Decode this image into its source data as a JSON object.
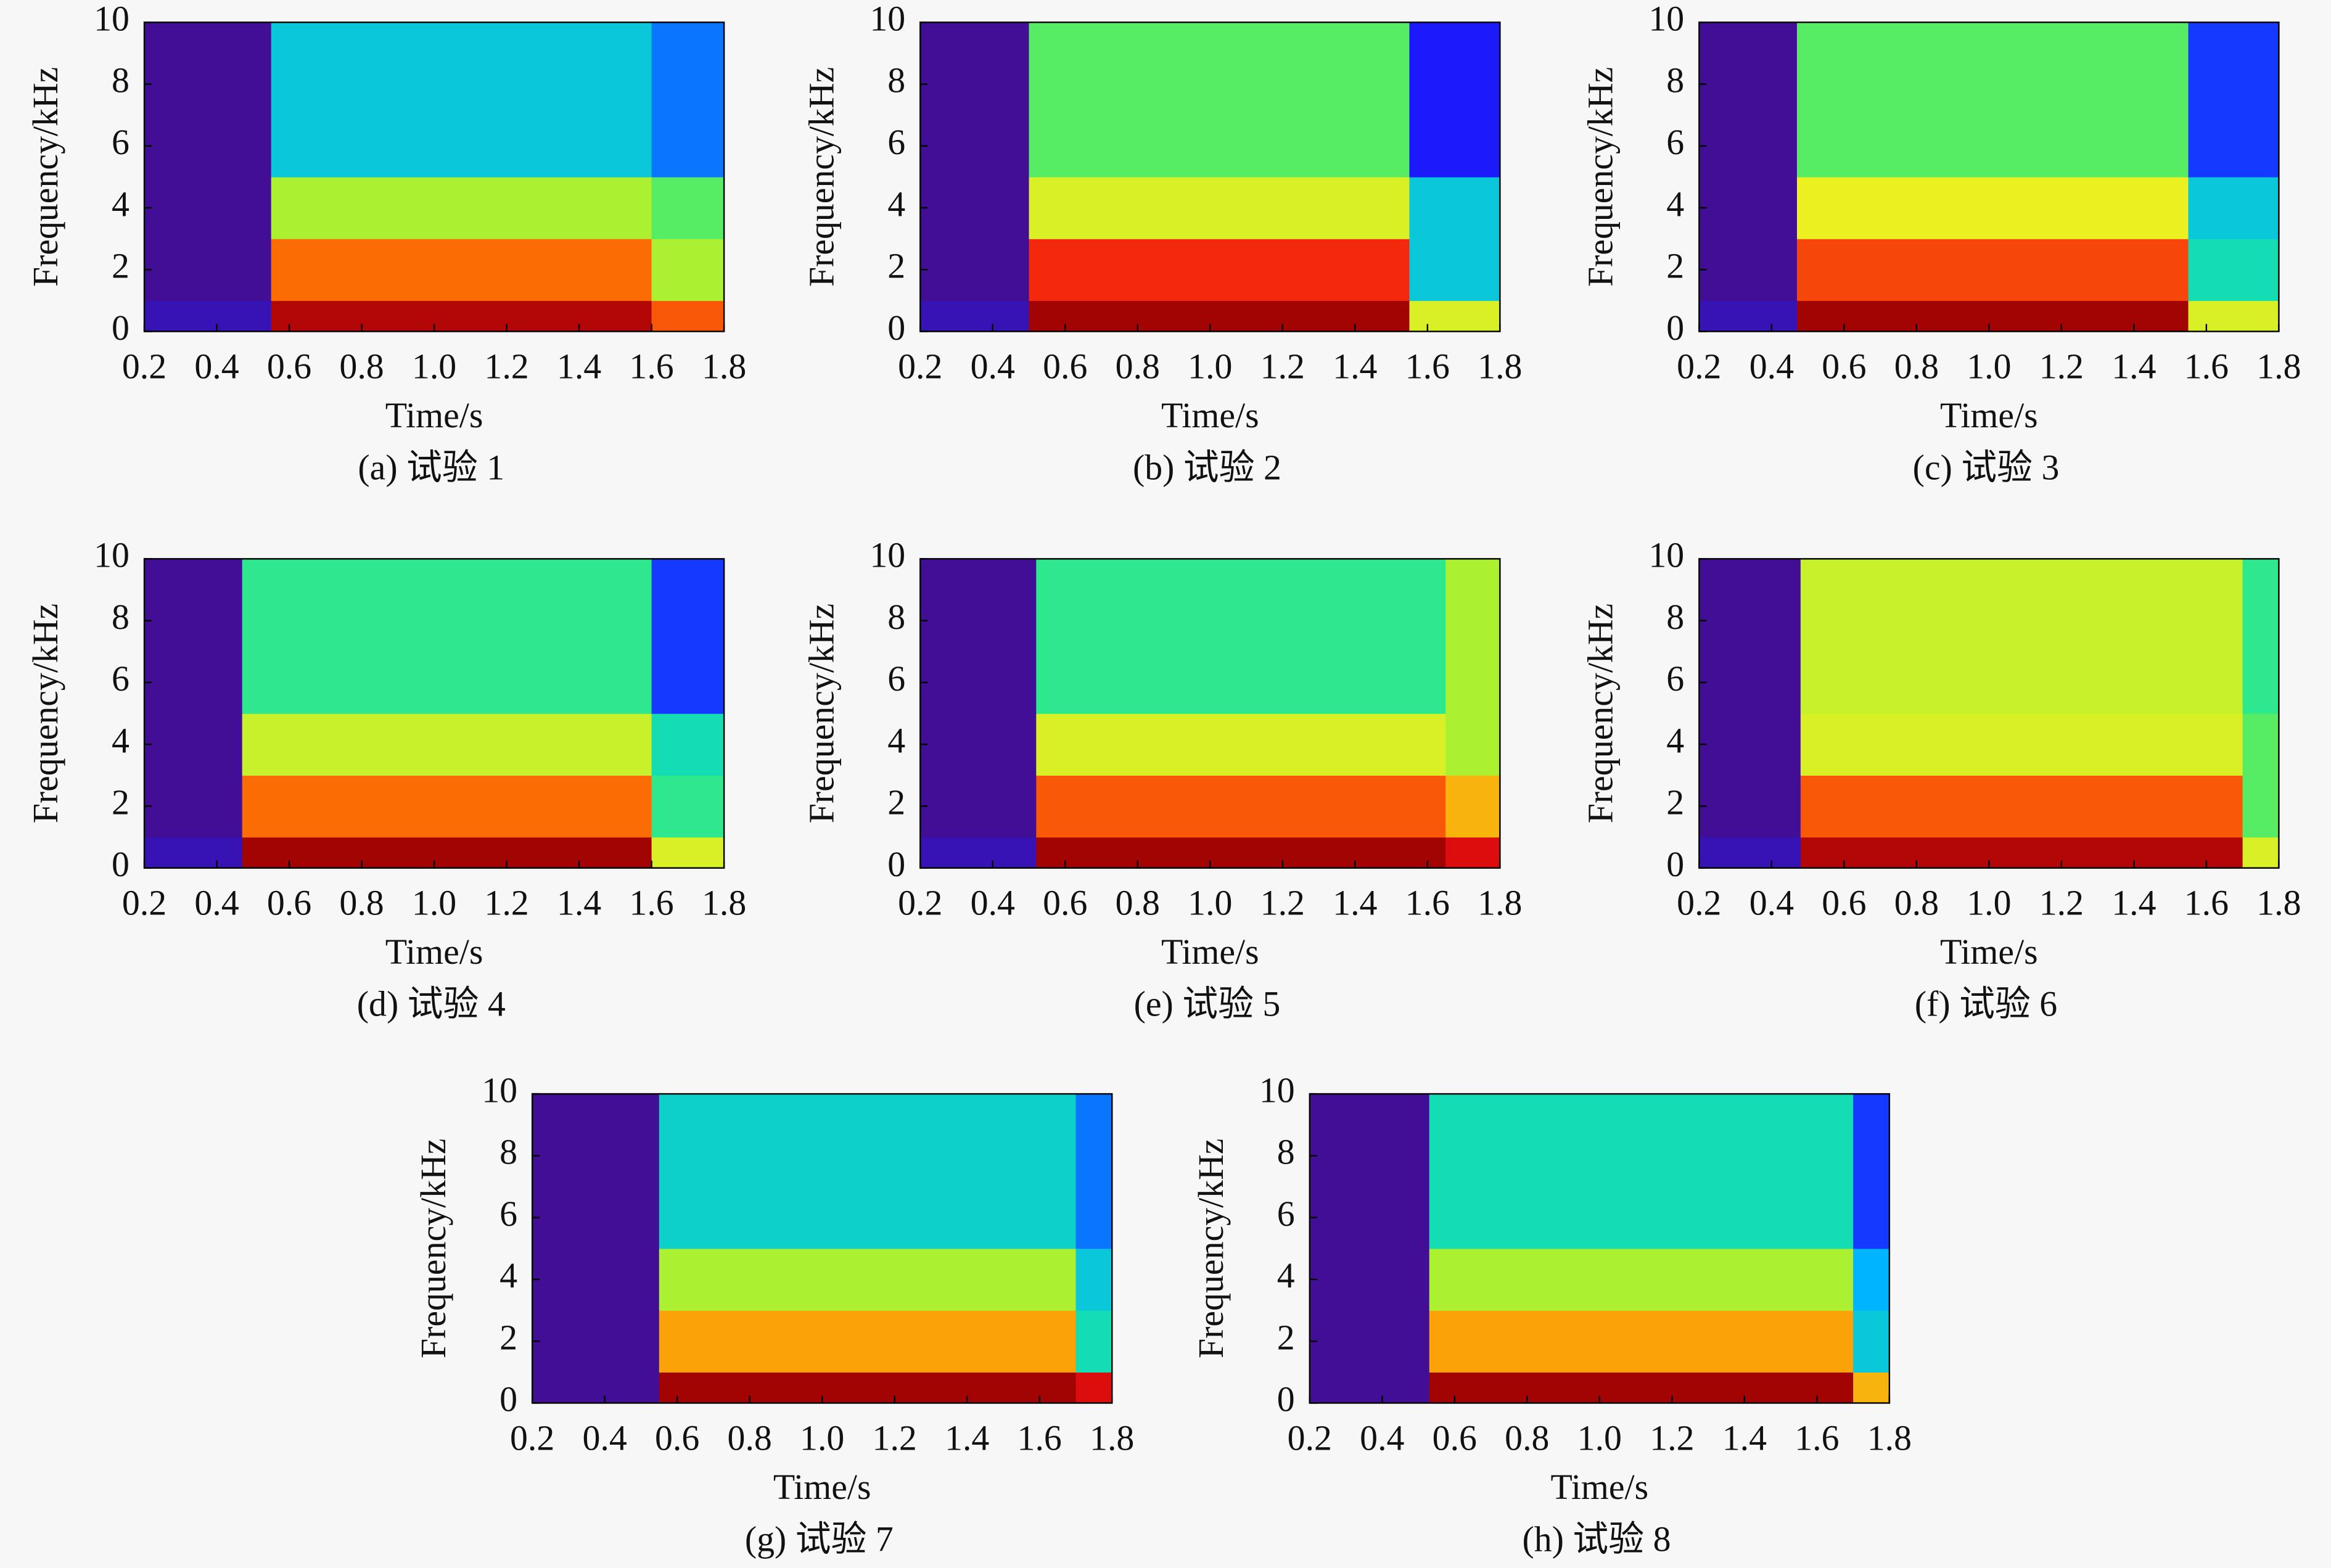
{
  "colormap": [
    "#4b0c82",
    "#1a1aff",
    "#00b4ff",
    "#19e6a0",
    "#7ef23c",
    "#f0f020",
    "#ff8a00",
    "#f01010",
    "#8a0000"
  ],
  "chart_data": [
    {
      "type": "spectrogram",
      "caption": "(a) 试验 1",
      "xlabel": "Time/s",
      "ylabel": "Frequency/kHz",
      "xlim": [
        0.2,
        1.8
      ],
      "ylim": [
        0,
        10
      ],
      "xticks": [
        0.2,
        0.4,
        0.6,
        0.8,
        {
          "value": 1,
          "label": "1.0"
        },
        1.2,
        1.4,
        1.6,
        1.8
      ],
      "yticks": [
        0,
        2,
        4,
        6,
        8,
        10
      ],
      "xedges": [
        0.2,
        0.55,
        1.6,
        1.8
      ],
      "yedges": [
        0,
        1,
        3,
        5,
        10
      ],
      "z": [
        [
          0.05,
          0.95,
          0.8
        ],
        [
          0.02,
          0.78,
          0.55
        ],
        [
          0.02,
          0.55,
          0.45
        ],
        [
          0.02,
          0.3,
          0.2
        ]
      ]
    },
    {
      "type": "spectrogram",
      "caption": "(b) 试验 2",
      "xlabel": "Time/s",
      "ylabel": "Frequency/kHz",
      "xlim": [
        0.2,
        1.8
      ],
      "ylim": [
        0,
        10
      ],
      "xticks": [
        0.2,
        0.4,
        0.6,
        0.8,
        {
          "value": 1,
          "label": "1.0"
        },
        1.2,
        1.4,
        1.6,
        1.8
      ],
      "yticks": [
        0,
        2,
        4,
        6,
        8,
        10
      ],
      "xedges": [
        0.2,
        0.5,
        1.55,
        1.8
      ],
      "yedges": [
        0,
        1,
        3,
        5,
        10
      ],
      "z": [
        [
          0.05,
          0.97,
          0.6
        ],
        [
          0.02,
          0.85,
          0.3
        ],
        [
          0.02,
          0.6,
          0.3
        ],
        [
          0.02,
          0.45,
          0.12
        ]
      ]
    },
    {
      "type": "spectrogram",
      "caption": "(c) 试验 3",
      "xlabel": "Time/s",
      "ylabel": "Frequency/kHz",
      "xlim": [
        0.2,
        1.8
      ],
      "ylim": [
        0,
        10
      ],
      "xticks": [
        0.2,
        0.4,
        0.6,
        0.8,
        {
          "value": 1,
          "label": "1.0"
        },
        1.2,
        1.4,
        1.6,
        1.8
      ],
      "yticks": [
        0,
        2,
        4,
        6,
        8,
        10
      ],
      "xedges": [
        0.2,
        0.47,
        1.55,
        1.8
      ],
      "yedges": [
        0,
        1,
        3,
        5,
        10
      ],
      "z": [
        [
          0.05,
          0.97,
          0.6
        ],
        [
          0.02,
          0.82,
          0.35
        ],
        [
          0.02,
          0.62,
          0.3
        ],
        [
          0.02,
          0.45,
          0.15
        ]
      ]
    },
    {
      "type": "spectrogram",
      "caption": "(d) 试验 4",
      "xlabel": "Time/s",
      "ylabel": "Frequency/kHz",
      "xlim": [
        0.2,
        1.8
      ],
      "ylim": [
        0,
        10
      ],
      "xticks": [
        0.2,
        0.4,
        0.6,
        0.8,
        {
          "value": 1,
          "label": "1.0"
        },
        1.2,
        1.4,
        1.6,
        1.8
      ],
      "yticks": [
        0,
        2,
        4,
        6,
        8,
        10
      ],
      "xedges": [
        0.2,
        0.47,
        1.6,
        1.8
      ],
      "yedges": [
        0,
        1,
        3,
        5,
        10
      ],
      "z": [
        [
          0.05,
          0.97,
          0.6
        ],
        [
          0.02,
          0.78,
          0.4
        ],
        [
          0.02,
          0.58,
          0.35
        ],
        [
          0.02,
          0.4,
          0.15
        ]
      ]
    },
    {
      "type": "spectrogram",
      "caption": "(e) 试验 5",
      "xlabel": "Time/s",
      "ylabel": "Frequency/kHz",
      "xlim": [
        0.2,
        1.8
      ],
      "ylim": [
        0,
        10
      ],
      "xticks": [
        0.2,
        0.4,
        0.6,
        0.8,
        {
          "value": 1,
          "label": "1.0"
        },
        1.2,
        1.4,
        1.6,
        1.8
      ],
      "yticks": [
        0,
        2,
        4,
        6,
        8,
        10
      ],
      "xedges": [
        0.2,
        0.52,
        1.65,
        1.8
      ],
      "yedges": [
        0,
        1,
        3,
        5,
        10
      ],
      "z": [
        [
          0.05,
          0.97,
          0.9
        ],
        [
          0.02,
          0.8,
          0.7
        ],
        [
          0.02,
          0.6,
          0.55
        ],
        [
          0.02,
          0.4,
          0.55
        ]
      ]
    },
    {
      "type": "spectrogram",
      "caption": "(f) 试验 6",
      "xlabel": "Time/s",
      "ylabel": "Frequency/kHz",
      "xlim": [
        0.2,
        1.8
      ],
      "ylim": [
        0,
        10
      ],
      "xticks": [
        0.2,
        0.4,
        0.6,
        0.8,
        {
          "value": 1,
          "label": "1.0"
        },
        1.2,
        1.4,
        1.6,
        1.8
      ],
      "yticks": [
        0,
        2,
        4,
        6,
        8,
        10
      ],
      "xedges": [
        0.2,
        0.48,
        1.7,
        1.8
      ],
      "yedges": [
        0,
        1,
        3,
        5,
        10
      ],
      "z": [
        [
          0.05,
          0.95,
          0.6
        ],
        [
          0.02,
          0.8,
          0.45
        ],
        [
          0.02,
          0.6,
          0.45
        ],
        [
          0.02,
          0.58,
          0.4
        ]
      ]
    },
    {
      "type": "spectrogram",
      "caption": "(g) 试验 7",
      "xlabel": "Time/s",
      "ylabel": "Frequency/kHz",
      "xlim": [
        0.2,
        1.8
      ],
      "ylim": [
        0,
        10
      ],
      "xticks": [
        0.2,
        0.4,
        0.6,
        0.8,
        {
          "value": 1,
          "label": "1.0"
        },
        1.2,
        1.4,
        1.6,
        1.8
      ],
      "yticks": [
        0,
        2,
        4,
        6,
        8,
        10
      ],
      "xedges": [
        0.2,
        0.55,
        1.7,
        1.8
      ],
      "yedges": [
        0,
        1,
        3,
        5,
        10
      ],
      "z": [
        [
          0.02,
          0.97,
          0.9
        ],
        [
          0.02,
          0.72,
          0.35
        ],
        [
          0.02,
          0.55,
          0.3
        ],
        [
          0.02,
          0.32,
          0.2
        ]
      ]
    },
    {
      "type": "spectrogram",
      "caption": "(h) 试验 8",
      "xlabel": "Time/s",
      "ylabel": "Frequency/kHz",
      "xlim": [
        0.2,
        1.8
      ],
      "ylim": [
        0,
        10
      ],
      "xticks": [
        0.2,
        0.4,
        0.6,
        0.8,
        {
          "value": 1,
          "label": "1.0"
        },
        1.2,
        1.4,
        1.6,
        1.8
      ],
      "yticks": [
        0,
        2,
        4,
        6,
        8,
        10
      ],
      "xedges": [
        0.2,
        0.53,
        1.7,
        1.8
      ],
      "yedges": [
        0,
        1,
        3,
        5,
        10
      ],
      "z": [
        [
          0.02,
          0.97,
          0.7
        ],
        [
          0.02,
          0.72,
          0.3
        ],
        [
          0.02,
          0.55,
          0.25
        ],
        [
          0.02,
          0.35,
          0.15
        ]
      ]
    }
  ]
}
